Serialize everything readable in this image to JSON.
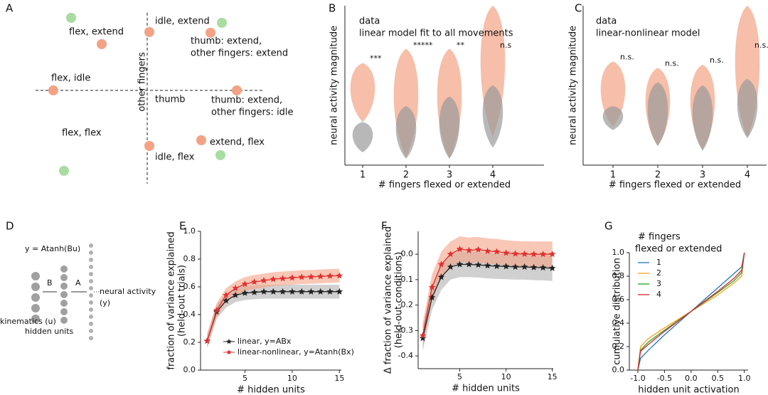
{
  "panel_letters": [
    "A",
    "B",
    "C",
    "D",
    "E",
    "F",
    "G"
  ],
  "diagram_a": {
    "axis_labels": [
      "other fingers",
      "thumb"
    ],
    "labels": [
      [
        "flex, extend"
      ],
      [
        "idle, extend"
      ],
      [
        "thumb: extend,",
        "other fingers: extend"
      ],
      [
        "flex, idle"
      ],
      [
        "thumb: extend,",
        "other fingers: idle"
      ],
      [
        "flex, flex"
      ],
      [
        "extend, flex"
      ],
      [
        "idle, flex"
      ]
    ]
  },
  "diagram_d": {
    "equation": "y = Atanh(Bu)",
    "weights": [
      "B",
      "A"
    ],
    "output": [
      "neural activity",
      "(y)"
    ],
    "input": "kinematics (u)",
    "hidden": "hidden units"
  },
  "chart_data": [
    {
      "type": "violin",
      "xlabel": "# fingers flexed or extended",
      "ylabel": "neural activity magnitude",
      "categories": [
        "1",
        "2",
        "3",
        "4"
      ],
      "ylim": [
        0,
        1
      ],
      "series": [
        {
          "name": "data",
          "color": "#f4a285",
          "values": [
            [
              0.27,
              0.64
            ],
            [
              0.05,
              0.73
            ],
            [
              0.04,
              0.73
            ],
            [
              0.18,
              1.0
            ]
          ]
        },
        {
          "name": "linear model fit to all movements",
          "color": "#9a9a9a",
          "values": [
            [
              0.08,
              0.27
            ],
            [
              0.04,
              0.37
            ],
            [
              0.04,
              0.43
            ],
            [
              0.11,
              0.5
            ]
          ]
        }
      ],
      "annotations": [
        "***",
        "*****",
        "**",
        "n.s"
      ]
    },
    {
      "type": "violin",
      "xlabel": "# fingers flexed or extended",
      "ylabel": "neural activity magnitude",
      "categories": [
        "1",
        "2",
        "3",
        "4"
      ],
      "ylim": [
        0,
        1
      ],
      "series": [
        {
          "name": "data",
          "color": "#f4a285",
          "values": [
            [
              0.24,
              0.65
            ],
            [
              0.12,
              0.61
            ],
            [
              0.1,
              0.63
            ],
            [
              0.17,
              1.0
            ]
          ]
        },
        {
          "name": "linear-nonlinear model",
          "color": "#9a9a9a",
          "values": [
            [
              0.22,
              0.37
            ],
            [
              0.12,
              0.52
            ],
            [
              0.09,
              0.5
            ],
            [
              0.17,
              0.54
            ]
          ]
        }
      ],
      "annotations": [
        "n.s.",
        "n.s.",
        "n.s.",
        "n.s."
      ]
    },
    {
      "type": "line",
      "xlabel": "# hidden units",
      "ylabel": [
        "fraction of variance explained",
        "(held-out trials)"
      ],
      "x": [
        1,
        2,
        3,
        4,
        5,
        6,
        7,
        8,
        9,
        10,
        11,
        12,
        13,
        14,
        15
      ],
      "xlim": [
        0.3,
        15.2
      ],
      "xticks": [
        5,
        10,
        15
      ],
      "ylim": [
        0,
        1
      ],
      "yticks": [
        {
          "value": 0,
          "label": "0.0"
        },
        0.2,
        0.4,
        0.6,
        0.8,
        {
          "value": 1,
          "label": "1.0"
        }
      ],
      "legend": "lower right",
      "series": [
        {
          "name": "linear, y=ABx",
          "color": "#222222",
          "band_color": "#b0b0b0",
          "error": 0.05,
          "values": [
            0.21,
            0.42,
            0.5,
            0.54,
            0.555,
            0.56,
            0.565,
            0.565,
            0.565,
            0.565,
            0.565,
            0.565,
            0.565,
            0.565,
            0.565
          ]
        },
        {
          "name": "linear-nonlinear, y=Atanh(Bx)",
          "color": "#e03030",
          "band_color": "#f4a285",
          "error": 0.05,
          "values": [
            0.21,
            0.43,
            0.54,
            0.59,
            0.62,
            0.635,
            0.645,
            0.655,
            0.66,
            0.665,
            0.67,
            0.672,
            0.675,
            0.678,
            0.68
          ]
        }
      ]
    },
    {
      "type": "line",
      "xlabel": "# hidden units",
      "ylabel": [
        "Δ fraction of variance explained",
        "(held-out conditions)"
      ],
      "x": [
        1,
        2,
        3,
        4,
        5,
        6,
        7,
        8,
        9,
        10,
        11,
        12,
        13,
        14,
        15
      ],
      "xlim": [
        0.5,
        15.1
      ],
      "xticks": [
        5,
        10,
        15
      ],
      "ylim": [
        -0.45,
        0.09
      ],
      "yticks": [
        {
          "value": 0,
          "label": "0.0"
        },
        -0.1,
        -0.2,
        -0.3,
        -0.4
      ],
      "series": [
        {
          "name": "linear, y=ABx",
          "color": "#222222",
          "band_color": "#b0b0b0",
          "error": 0.05,
          "values": [
            -0.33,
            -0.17,
            -0.09,
            -0.05,
            -0.04,
            -0.04,
            -0.042,
            -0.045,
            -0.047,
            -0.048,
            -0.05,
            -0.05,
            -0.052,
            -0.053,
            -0.055
          ]
        },
        {
          "name": "linear-nonlinear, y=Atanh(Bx)",
          "color": "#e03030",
          "band_color": "#f4a285",
          "error": 0.05,
          "values": [
            -0.32,
            -0.13,
            -0.04,
            0.0,
            0.02,
            0.015,
            0.018,
            0.012,
            0.01,
            0.005,
            0.002,
            0.001,
            0.0,
            0.0,
            0.0
          ]
        }
      ]
    },
    {
      "type": "cdf",
      "xlabel": "hidden unit activation",
      "ylabel": [
        "cumulative distribution"
      ],
      "legend_title": [
        "# fingers",
        "flexed or extended"
      ],
      "legend": "upper left",
      "x": [
        -1,
        -0.95,
        -0.8,
        -0.5,
        0,
        0.5,
        0.8,
        0.95,
        1
      ],
      "xlim": [
        -1.16,
        1.07
      ],
      "xticks": [
        {
          "value": -1,
          "label": "-1.0"
        },
        -0.5,
        {
          "value": 0,
          "label": "0.0"
        },
        0.5,
        {
          "value": 1,
          "label": "1.0"
        }
      ],
      "ylim": [
        0,
        1
      ],
      "yticks": [
        {
          "value": 0,
          "label": "0.0"
        },
        0.2,
        0.4,
        0.6,
        0.8,
        {
          "value": 1,
          "label": "1.0"
        }
      ],
      "series": [
        {
          "name": "1",
          "color": "#1f77b4",
          "values": [
            0.0,
            0.1,
            0.17,
            0.3,
            0.5,
            0.7,
            0.82,
            0.88,
            1.0
          ]
        },
        {
          "name": "2",
          "color": "#ff9f1c",
          "values": [
            0.0,
            0.2,
            0.27,
            0.36,
            0.5,
            0.64,
            0.74,
            0.8,
            1.0
          ]
        },
        {
          "name": "3",
          "color": "#2ca02c",
          "values": [
            0.0,
            0.17,
            0.24,
            0.34,
            0.5,
            0.66,
            0.76,
            0.83,
            1.0
          ]
        },
        {
          "name": "4",
          "color": "#d62728",
          "values": [
            0.0,
            0.16,
            0.22,
            0.33,
            0.5,
            0.67,
            0.78,
            0.85,
            1.0
          ]
        }
      ]
    }
  ]
}
